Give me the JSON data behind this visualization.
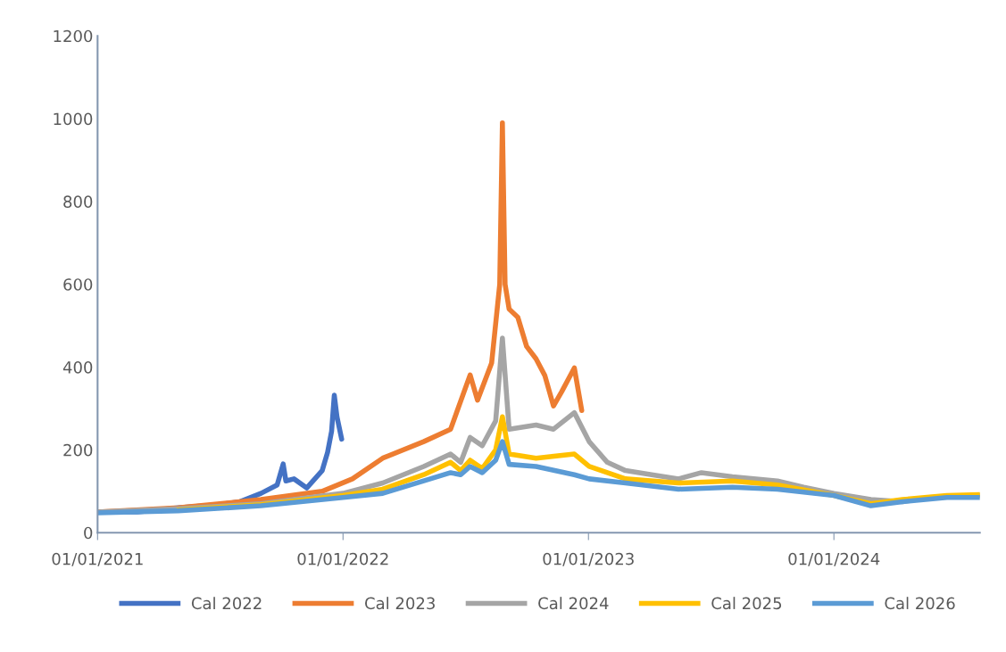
{
  "chart_data": {
    "type": "line",
    "legend": "bottom",
    "grid": false,
    "line_style": "solid",
    "marker": "none",
    "xlim": [
      "2021-01-01",
      "2024-08-05"
    ],
    "xticks": [
      {
        "value": "2021-01-01",
        "label": "01/01/2021"
      },
      {
        "value": "2022-01-01",
        "label": "01/01/2022"
      },
      {
        "value": "2023-01-01",
        "label": "01/01/2023"
      },
      {
        "value": "2024-01-01",
        "label": "01/01/2024"
      }
    ],
    "ylim": [
      0,
      1200
    ],
    "yticks": [
      0,
      200,
      400,
      600,
      800,
      1000,
      1200
    ],
    "series": [
      {
        "name": "Cal 2022",
        "color": "#4472c4",
        "x": [
          "2021-01-01",
          "2021-03-01",
          "2021-05-01",
          "2021-07-01",
          "2021-08-01",
          "2021-09-01",
          "2021-09-25",
          "2021-10-04",
          "2021-10-08",
          "2021-10-20",
          "2021-11-08",
          "2021-12-01",
          "2021-12-09",
          "2021-12-15",
          "2021-12-19",
          "2021-12-23",
          "2021-12-30"
        ],
        "values": [
          50,
          50,
          60,
          68,
          75,
          95,
          115,
          166,
          125,
          130,
          108,
          150,
          194,
          245,
          332,
          280,
          226
        ]
      },
      {
        "name": "Cal 2023",
        "color": "#ed7d31",
        "x": [
          "2021-01-01",
          "2021-05-01",
          "2021-09-01",
          "2021-12-01",
          "2022-01-15",
          "2022-03-01",
          "2022-05-01",
          "2022-06-10",
          "2022-07-09",
          "2022-07-20",
          "2022-08-10",
          "2022-08-22",
          "2022-08-26",
          "2022-08-30",
          "2022-09-05",
          "2022-09-18",
          "2022-10-01",
          "2022-10-15",
          "2022-10-28",
          "2022-11-10",
          "2022-11-22",
          "2022-12-11",
          "2022-12-22"
        ],
        "values": [
          50,
          60,
          80,
          100,
          130,
          180,
          220,
          250,
          381,
          320,
          410,
          600,
          990,
          600,
          540,
          520,
          450,
          420,
          380,
          306,
          340,
          398,
          295
        ]
      },
      {
        "name": "Cal 2024",
        "color": "#a5a5a5",
        "x": [
          "2021-01-01",
          "2021-05-01",
          "2021-09-01",
          "2022-01-01",
          "2022-03-01",
          "2022-05-01",
          "2022-06-10",
          "2022-06-25",
          "2022-07-09",
          "2022-07-27",
          "2022-08-16",
          "2022-08-26",
          "2022-09-05",
          "2022-10-15",
          "2022-11-10",
          "2022-12-11",
          "2023-01-02",
          "2023-01-29",
          "2023-02-25",
          "2023-04-05",
          "2023-05-15",
          "2023-06-18",
          "2023-08-03",
          "2023-10-09",
          "2023-11-17",
          "2024-01-01",
          "2024-02-25",
          "2024-04-12",
          "2024-05-22",
          "2024-08-05"
        ],
        "values": [
          50,
          58,
          70,
          95,
          120,
          160,
          190,
          170,
          230,
          210,
          270,
          470,
          250,
          260,
          250,
          290,
          220,
          170,
          150,
          140,
          130,
          145,
          135,
          125,
          110,
          95,
          80,
          75,
          85,
          90
        ]
      },
      {
        "name": "Cal 2025",
        "color": "#ffc000",
        "x": [
          "2021-05-01",
          "2021-09-01",
          "2022-01-01",
          "2022-03-01",
          "2022-05-01",
          "2022-06-10",
          "2022-06-25",
          "2022-07-09",
          "2022-07-27",
          "2022-08-16",
          "2022-08-26",
          "2022-09-05",
          "2022-10-15",
          "2022-12-11",
          "2023-01-02",
          "2023-02-25",
          "2023-05-15",
          "2023-08-03",
          "2023-10-09",
          "2024-01-01",
          "2024-02-25",
          "2024-04-12",
          "2024-06-17",
          "2024-08-05"
        ],
        "values": [
          55,
          68,
          90,
          105,
          140,
          170,
          150,
          175,
          155,
          200,
          280,
          190,
          180,
          190,
          160,
          130,
          120,
          125,
          115,
          90,
          70,
          80,
          90,
          92
        ]
      },
      {
        "name": "Cal 2026",
        "color": "#5b9bd5",
        "x": [
          "2021-01-01",
          "2021-05-01",
          "2021-09-01",
          "2022-01-01",
          "2022-03-01",
          "2022-05-01",
          "2022-06-10",
          "2022-06-25",
          "2022-07-09",
          "2022-07-27",
          "2022-08-16",
          "2022-08-26",
          "2022-09-05",
          "2022-10-15",
          "2022-12-11",
          "2023-01-02",
          "2023-02-25",
          "2023-05-15",
          "2023-08-03",
          "2023-10-09",
          "2024-01-01",
          "2024-02-25",
          "2024-04-12",
          "2024-06-17",
          "2024-08-05"
        ],
        "values": [
          48,
          53,
          65,
          85,
          95,
          125,
          145,
          140,
          160,
          145,
          175,
          220,
          165,
          160,
          140,
          130,
          120,
          105,
          110,
          105,
          90,
          65,
          75,
          85,
          85
        ]
      }
    ]
  }
}
